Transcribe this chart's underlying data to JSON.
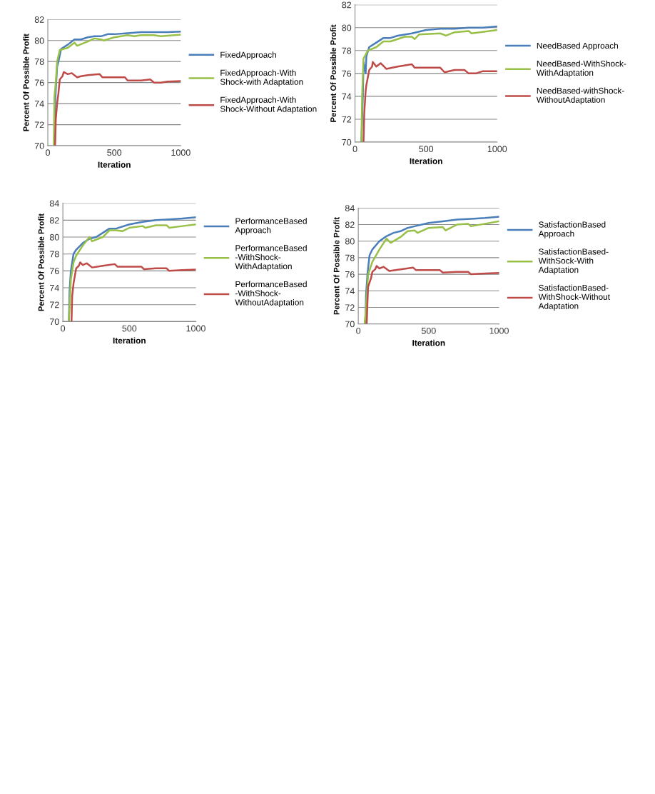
{
  "chart_data": [
    {
      "type": "line",
      "xlabel": "Iteration",
      "ylabel": "Percent Of Possible Profit",
      "xlim": [
        0,
        1000
      ],
      "xticks": [
        0,
        500,
        1000
      ],
      "ylim": [
        70,
        82
      ],
      "yticks": [
        70,
        72,
        74,
        76,
        78,
        80,
        82
      ],
      "grid": "y",
      "legend": "right",
      "marker": "none",
      "line_style": "solid",
      "series": [
        {
          "name": "FixedApproach",
          "color": "#4a7ebb",
          "x": [
            50,
            55,
            60,
            70,
            80,
            100,
            150,
            200,
            250,
            300,
            350,
            400,
            450,
            500,
            600,
            700,
            800,
            900,
            1000
          ],
          "values": [
            70,
            74,
            75.3,
            77.5,
            78,
            79.2,
            79.6,
            80.1,
            80.1,
            80.3,
            80.4,
            80.4,
            80.6,
            80.6,
            80.7,
            80.8,
            80.8,
            80.8,
            80.85
          ]
        },
        {
          "name": "FixedApproach-With\nShock-with Adaptation",
          "color": "#98c047",
          "x": [
            45,
            50,
            60,
            70,
            90,
            150,
            200,
            220,
            300,
            350,
            400,
            420,
            500,
            600,
            650,
            700,
            800,
            850,
            1000
          ],
          "values": [
            70,
            74.7,
            76,
            78,
            79.1,
            79.3,
            79.8,
            79.5,
            79.9,
            80.2,
            80.1,
            80,
            80.3,
            80.5,
            80.4,
            80.5,
            80.5,
            80.4,
            80.55
          ]
        },
        {
          "name": "FixedApproach-With\nShock-Without Adaptation",
          "color": "#be4b48",
          "x": [
            55,
            60,
            70,
            80,
            90,
            110,
            120,
            150,
            180,
            220,
            250,
            300,
            390,
            410,
            500,
            580,
            600,
            700,
            770,
            800,
            850,
            900,
            1000
          ],
          "values": [
            70,
            72.5,
            74,
            75,
            76.3,
            76.6,
            77,
            76.8,
            76.9,
            76.5,
            76.6,
            76.7,
            76.8,
            76.5,
            76.5,
            76.5,
            76.2,
            76.2,
            76.3,
            76,
            76,
            76.1,
            76.15
          ]
        }
      ]
    },
    {
      "type": "line",
      "xlabel": "Iteration",
      "ylabel": "Percent Of Possible Profit",
      "xlim": [
        0,
        1000
      ],
      "xticks": [
        0,
        500,
        1000
      ],
      "ylim": [
        70,
        82
      ],
      "yticks": [
        70,
        72,
        74,
        76,
        78,
        80,
        82
      ],
      "grid": "y",
      "legend": "right",
      "marker": "none",
      "line_style": "solid",
      "series": [
        {
          "name": "NeedBased Approach",
          "color": "#4a7ebb",
          "x": [
            45,
            55,
            60,
            75,
            80,
            100,
            150,
            200,
            250,
            300,
            400,
            500,
            600,
            700,
            800,
            900,
            1000
          ],
          "values": [
            70,
            74,
            77,
            76,
            77.5,
            78.3,
            78.7,
            79.1,
            79.1,
            79.3,
            79.5,
            79.8,
            79.9,
            79.9,
            80,
            80,
            80.1
          ]
        },
        {
          "name": "NeedBased-WithShock-\nWithAdaptation",
          "color": "#98c047",
          "x": [
            45,
            50,
            60,
            90,
            150,
            200,
            250,
            350,
            400,
            420,
            450,
            600,
            640,
            700,
            800,
            820,
            1000
          ],
          "values": [
            70,
            74,
            77.3,
            78,
            78.3,
            78.8,
            78.8,
            79.2,
            79.2,
            79,
            79.4,
            79.5,
            79.3,
            79.6,
            79.7,
            79.5,
            79.8
          ]
        },
        {
          "name": "NeedBased-withShock-\nWithoutAdaptation",
          "color": "#be4b48",
          "x": [
            60,
            65,
            75,
            80,
            100,
            120,
            125,
            150,
            180,
            220,
            300,
            400,
            420,
            500,
            600,
            630,
            700,
            770,
            800,
            850,
            900,
            1000
          ],
          "values": [
            70,
            72.5,
            74.5,
            75,
            76.3,
            76.6,
            77,
            76.6,
            76.9,
            76.4,
            76.6,
            76.8,
            76.5,
            76.5,
            76.5,
            76.1,
            76.3,
            76.3,
            76,
            76,
            76.2,
            76.2
          ]
        }
      ]
    },
    {
      "type": "line",
      "xlabel": "Iteration",
      "ylabel": "Percent Of Possible Profit",
      "xlim": [
        0,
        1000
      ],
      "xticks": [
        0,
        500,
        1000
      ],
      "ylim": [
        70,
        84
      ],
      "yticks": [
        70,
        72,
        74,
        76,
        78,
        80,
        82,
        84
      ],
      "grid": "y",
      "legend": "right",
      "marker": "none",
      "line_style": "solid",
      "series": [
        {
          "name": "PerformanceBased\nApproach",
          "color": "#4a7ebb",
          "x": [
            45,
            50,
            60,
            70,
            80,
            100,
            150,
            200,
            250,
            300,
            350,
            400,
            500,
            600,
            700,
            800,
            900,
            1000
          ],
          "values": [
            70,
            73.5,
            76,
            77,
            78,
            78.5,
            79.3,
            79.8,
            80,
            80.5,
            81,
            81,
            81.5,
            81.8,
            82,
            82.1,
            82.2,
            82.35
          ]
        },
        {
          "name": "PerformanceBased\n-WithShock-\nWithAdaptation",
          "color": "#98c047",
          "x": [
            45,
            60,
            80,
            100,
            150,
            200,
            220,
            300,
            350,
            400,
            450,
            500,
            600,
            620,
            700,
            780,
            800,
            900,
            1000
          ],
          "values": [
            70,
            75,
            77,
            77.8,
            79,
            80,
            79.5,
            80,
            80.8,
            80.8,
            80.7,
            81.1,
            81.3,
            81.1,
            81.4,
            81.4,
            81.1,
            81.3,
            81.5
          ]
        },
        {
          "name": "PerformanceBased\n-WithShock-\nWithoutAdaptation",
          "color": "#be4b48",
          "x": [
            65,
            70,
            80,
            100,
            120,
            130,
            150,
            180,
            220,
            300,
            390,
            410,
            500,
            590,
            610,
            700,
            780,
            800,
            900,
            1000
          ],
          "values": [
            70,
            73,
            74.5,
            76.3,
            76.6,
            77,
            76.7,
            76.9,
            76.4,
            76.6,
            76.8,
            76.5,
            76.5,
            76.5,
            76.2,
            76.3,
            76.3,
            76,
            76.1,
            76.15
          ]
        }
      ]
    },
    {
      "type": "line",
      "xlabel": "Iteration",
      "ylabel": "Percent Of Possible Profit",
      "xlim": [
        0,
        1000
      ],
      "xticks": [
        0,
        500,
        1000
      ],
      "ylim": [
        70,
        84
      ],
      "yticks": [
        70,
        72,
        74,
        76,
        78,
        80,
        82,
        84
      ],
      "grid": "y",
      "legend": "right",
      "marker": "none",
      "line_style": "solid",
      "series": [
        {
          "name": "SatisfactionBased\nApproach",
          "color": "#4a7ebb",
          "x": [
            50,
            55,
            65,
            80,
            100,
            150,
            200,
            250,
            300,
            350,
            400,
            500,
            600,
            700,
            800,
            900,
            1000
          ],
          "values": [
            70,
            73.5,
            76,
            78.3,
            79,
            80,
            80.6,
            81,
            81.2,
            81.6,
            81.8,
            82.2,
            82.4,
            82.6,
            82.7,
            82.8,
            82.95
          ]
        },
        {
          "name": "SatisfactionBased-\nWithSock-With\nAdaptation",
          "color": "#98c047",
          "x": [
            45,
            55,
            70,
            100,
            150,
            200,
            230,
            300,
            350,
            400,
            420,
            500,
            600,
            620,
            700,
            780,
            800,
            900,
            1000
          ],
          "values": [
            70,
            72,
            76,
            77.5,
            79,
            80.3,
            79.8,
            80.5,
            81.2,
            81.3,
            81,
            81.6,
            81.7,
            81.3,
            82,
            82.1,
            81.8,
            82.1,
            82.4
          ]
        },
        {
          "name": "SatisfactionBased-\nWithShock-Without\nAdaptation",
          "color": "#be4b48",
          "x": [
            60,
            65,
            70,
            90,
            100,
            120,
            130,
            150,
            180,
            220,
            300,
            390,
            410,
            500,
            580,
            600,
            700,
            780,
            800,
            900,
            1000
          ],
          "values": [
            70,
            72.5,
            74.5,
            75.5,
            76.3,
            76.6,
            77,
            76.7,
            76.9,
            76.4,
            76.6,
            76.8,
            76.5,
            76.5,
            76.5,
            76.2,
            76.3,
            76.3,
            76,
            76.1,
            76.15
          ]
        }
      ]
    }
  ]
}
